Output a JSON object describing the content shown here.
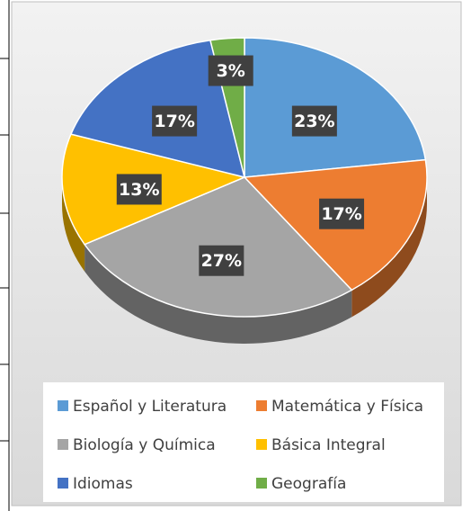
{
  "chart_data": {
    "type": "pie",
    "categories": [
      "Español y Literatura",
      "Matemática y Física",
      "Biología y Química",
      "Básica Integral",
      "Idiomas",
      "Geografía"
    ],
    "values": [
      23,
      17,
      27,
      13,
      17,
      3
    ],
    "value_labels": [
      "23%",
      "17%",
      "27%",
      "13%",
      "17%",
      "3%"
    ],
    "colors": [
      "#5b9bd5",
      "#ed7d31",
      "#a5a5a5",
      "#ffc000",
      "#4472c4",
      "#70ad47"
    ],
    "legend": "bottom"
  }
}
